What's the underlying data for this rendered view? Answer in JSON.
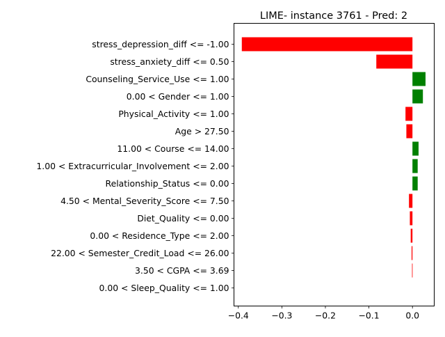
{
  "chart_data": {
    "type": "bar",
    "orientation": "horizontal",
    "title": "LIME- instance 3761 - Pred: 2",
    "xlabel": "",
    "ylabel": "",
    "xlim": [
      -0.41,
      0.05
    ],
    "xticks": [
      -0.4,
      -0.3,
      -0.2,
      -0.1,
      0.0
    ],
    "xtick_labels": [
      "−0.4",
      "−0.3",
      "−0.2",
      "−0.1",
      "0.0"
    ],
    "grid": false,
    "legend": "none",
    "positive_color": "#008000",
    "negative_color": "#ff0000",
    "categories": [
      "stress_depression_diff <= -1.00",
      "stress_anxiety_diff <= 0.50",
      "Counseling_Service_Use <= 1.00",
      "0.00 < Gender <= 1.00",
      "Physical_Activity <= 1.00",
      "Age > 27.50",
      "11.00 < Course <= 14.00",
      "1.00 < Extracurricular_Involvement <= 2.00",
      "Relationship_Status <= 0.00",
      "4.50 < Mental_Severity_Score <= 7.50",
      "Diet_Quality <= 0.00",
      "0.00 < Residence_Type <= 2.00",
      "22.00 < Semester_Credit_Load <= 26.00",
      "3.50 < CGPA <= 3.69",
      "0.00 < Sleep_Quality <= 1.00"
    ],
    "values": [
      -0.392,
      -0.083,
      0.03,
      0.024,
      -0.016,
      -0.014,
      0.014,
      0.012,
      0.012,
      -0.008,
      -0.006,
      -0.004,
      -0.002,
      -0.001,
      0.0
    ]
  }
}
